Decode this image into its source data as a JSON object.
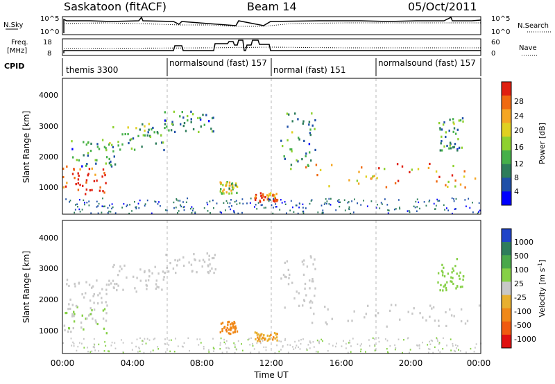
{
  "header": {
    "station": "Saskatoon (fitACF)",
    "beam": "Beam 14",
    "date": "05/Oct/2011"
  },
  "noise_panel": {
    "left_label": "N.Sky",
    "right_label": "N.Search",
    "left_ticks": [
      "10^5",
      "10^0"
    ],
    "right_ticks": [
      "10^5",
      "10^0"
    ]
  },
  "freq_panel": {
    "left_label_1": "Freq.",
    "left_label_2": "[MHz]",
    "right_label": "Nave",
    "left_ticks": [
      "18",
      "8"
    ],
    "right_ticks": [
      "60",
      "0"
    ]
  },
  "cpid": {
    "label": "CPID",
    "segments": [
      {
        "start_hour": 0,
        "text": "themis 3300"
      },
      {
        "start_hour": 6,
        "text": "normalsound (fast) 157"
      },
      {
        "start_hour": 12,
        "text": "normal (fast) 151"
      },
      {
        "start_hour": 18,
        "text": "normalsound (fast) 157"
      }
    ]
  },
  "axes": {
    "ylabel": "Slant Range [km]",
    "xlabel": "Time UT",
    "yticks": [
      "1000",
      "2000",
      "3000",
      "4000"
    ],
    "xticks": [
      "00:00",
      "04:00",
      "08:00",
      "12:00",
      "16:00",
      "20:00",
      "00:00"
    ]
  },
  "power_colorbar": {
    "label": "Power [dB]",
    "ticks": [
      "4",
      "8",
      "12",
      "16",
      "20",
      "24",
      "28"
    ],
    "colors": [
      "#0000ff",
      "#1f50a8",
      "#2e7d5b",
      "#46b04a",
      "#8ed12f",
      "#e0d020",
      "#f5a623",
      "#f06a10",
      "#e02010"
    ]
  },
  "velocity_colorbar": {
    "label": "Velocity [m s",
    "label_sup": "-1",
    "label_end": "]",
    "ticks": [
      "1000",
      "500",
      "100",
      "25",
      "-25",
      "-100",
      "-500",
      "-1000"
    ],
    "colors": [
      "#2044c8",
      "#2e7d5b",
      "#4aa84a",
      "#86d046",
      "#c8c8c8",
      "#e8b030",
      "#f08818",
      "#f05a10",
      "#e01010"
    ]
  },
  "chart_data": {
    "type": "heatmap",
    "title": "Saskatoon (fitACF)  Beam 14  05/Oct/2011",
    "xlabel": "Time UT",
    "ylabel": "Slant Range [km]",
    "xlim_hours": [
      0,
      24
    ],
    "ylim_km": [
      180,
      4600
    ],
    "grid": "dashed vertical lines at 06:00, 12:00, 18:00",
    "panels": [
      "Power [dB]",
      "Velocity [m s-1]"
    ],
    "power_range_db": [
      0,
      30
    ],
    "velocity_range_ms": [
      -1000,
      1000
    ],
    "echo_regions": [
      {
        "t0": 0.0,
        "t1": 2.6,
        "r0": 800,
        "r1": 1700,
        "power_db": 28,
        "velocity": 100
      },
      {
        "t0": 0.2,
        "t1": 3.0,
        "r0": 1700,
        "r1": 2600,
        "power_db": 10,
        "velocity": 25
      },
      {
        "t0": 2.8,
        "t1": 5.8,
        "r0": 2200,
        "r1": 3100,
        "power_db": 12,
        "velocity": 0
      },
      {
        "t0": 5.8,
        "t1": 8.8,
        "r0": 2800,
        "r1": 3500,
        "power_db": 10,
        "velocity": 0
      },
      {
        "t0": 9.0,
        "t1": 10.0,
        "r0": 800,
        "r1": 1200,
        "power_db": 16,
        "velocity": -500
      },
      {
        "t0": 11.0,
        "t1": 12.3,
        "r0": 550,
        "r1": 850,
        "power_db": 26,
        "velocity": -300
      },
      {
        "t0": 12.5,
        "t1": 14.5,
        "r0": 1600,
        "r1": 3500,
        "power_db": 10,
        "velocity": 25
      },
      {
        "t0": 13.5,
        "t1": 24.0,
        "r0": 1000,
        "r1": 1800,
        "power_db": 22,
        "velocity": 0
      },
      {
        "t0": 21.5,
        "t1": 23.0,
        "r0": 2200,
        "r1": 3300,
        "power_db": 10,
        "velocity": 200
      }
    ]
  }
}
